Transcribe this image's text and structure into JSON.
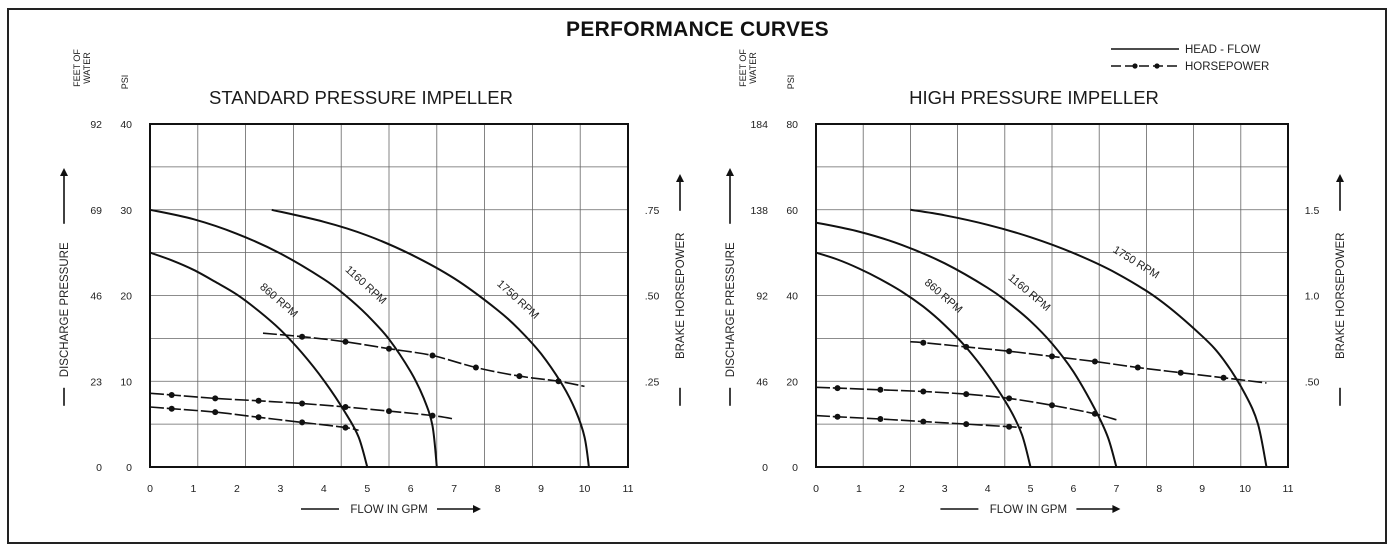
{
  "title": "PERFORMANCE CURVES",
  "legend": {
    "head_flow": "HEAD - FLOW",
    "horsepower": "HORSEPOWER"
  },
  "chart_data": [
    {
      "type": "line",
      "title": "STANDARD PRESSURE IMPELLER",
      "xlabel": "FLOW IN GPM",
      "ylabel_left": "DISCHARGE PRESSURE",
      "ylabel_right": "BRAKE HORSEPOWER",
      "left_axis_headers": [
        "FEET OF WATER",
        "PSI"
      ],
      "xlim": [
        0,
        11
      ],
      "ylim": [
        0,
        40
      ],
      "xticks": [
        "0",
        "1",
        "2",
        "3",
        "4",
        "5",
        "6",
        "7",
        "8",
        "9",
        "10",
        "11"
      ],
      "psi_ticks": [
        "0",
        "10",
        "20",
        "30",
        "40"
      ],
      "feet_ticks": [
        "0",
        "23",
        "46",
        "69",
        "92"
      ],
      "hp_ticks": [
        ".25",
        ".50",
        ".75"
      ],
      "hp_scale_psi_per_hp": 40,
      "grid": true,
      "head_flow_series": [
        {
          "name": "860 RPM",
          "x": [
            0,
            0.5,
            1,
            1.5,
            2,
            2.5,
            3,
            3.5,
            4,
            4.5,
            4.8,
            5
          ],
          "y": [
            25,
            24.1,
            23,
            21.6,
            20.1,
            18.2,
            16,
            13.3,
            10.1,
            6.3,
            3.5,
            0
          ]
        },
        {
          "name": "1160 RPM",
          "x": [
            0,
            1,
            2,
            3,
            4,
            4.5,
            5,
            5.5,
            6,
            6.3,
            6.5,
            6.6
          ],
          "y": [
            30,
            28.9,
            27.2,
            24.9,
            21.9,
            20,
            17.7,
            14.9,
            11.1,
            8,
            4.8,
            0
          ]
        },
        {
          "name": "1750 RPM",
          "x": [
            2.8,
            4,
            5,
            6,
            7,
            8,
            8.5,
            9,
            9.5,
            9.8,
            10,
            10.1
          ],
          "y": [
            30,
            28.6,
            27,
            24.8,
            22,
            18.3,
            16,
            13.2,
            9.5,
            6.5,
            3.5,
            0
          ]
        }
      ],
      "horsepower_series": [
        {
          "rpm": "860 RPM",
          "x": [
            0,
            0.5,
            1.5,
            2.5,
            3.5,
            4.5,
            4.8
          ],
          "hp": [
            0.175,
            0.17,
            0.16,
            0.145,
            0.13,
            0.115,
            0.107
          ]
        },
        {
          "rpm": "1160 RPM",
          "x": [
            0,
            0.5,
            1.5,
            2.5,
            3.5,
            4.5,
            5.5,
            6.5,
            7
          ],
          "hp": [
            0.215,
            0.21,
            0.2,
            0.193,
            0.185,
            0.175,
            0.163,
            0.15,
            0.14
          ]
        },
        {
          "rpm": "1750 RPM",
          "x": [
            2.6,
            3.5,
            4.5,
            5.5,
            6.5,
            7.5,
            8.5,
            9.4,
            10
          ],
          "hp": [
            0.39,
            0.38,
            0.365,
            0.345,
            0.325,
            0.29,
            0.265,
            0.25,
            0.235
          ]
        }
      ]
    },
    {
      "type": "line",
      "title": "HIGH PRESSURE IMPELLER",
      "xlabel": "FLOW IN GPM",
      "ylabel_left": "DISCHARGE PRESSURE",
      "ylabel_right": "BRAKE HORSEPOWER",
      "left_axis_headers": [
        "FEET OF WATER",
        "PSI"
      ],
      "xlim": [
        0,
        11
      ],
      "ylim": [
        0,
        80
      ],
      "xticks": [
        "0",
        "1",
        "2",
        "3",
        "4",
        "5",
        "6",
        "7",
        "8",
        "9",
        "10",
        "11"
      ],
      "psi_ticks": [
        "0",
        "20",
        "40",
        "60",
        "80"
      ],
      "feet_ticks": [
        "0",
        "46",
        "92",
        "138",
        "184"
      ],
      "hp_ticks": [
        ".50",
        "1.0",
        "1.5"
      ],
      "hp_scale_psi_per_hp": 40,
      "grid": true,
      "head_flow_series": [
        {
          "name": "860 RPM",
          "x": [
            0,
            0.5,
            1,
            1.5,
            2,
            2.5,
            3,
            3.5,
            4,
            4.5,
            4.8,
            5
          ],
          "y": [
            50,
            48.4,
            46.3,
            43.8,
            40.9,
            37.4,
            33.1,
            27.9,
            21.5,
            13.8,
            7.5,
            0
          ]
        },
        {
          "name": "1160 RPM",
          "x": [
            0,
            1,
            2,
            3,
            4,
            4.5,
            5,
            5.5,
            6,
            6.5,
            6.8,
            7
          ],
          "y": [
            57,
            54.9,
            51.8,
            47.5,
            41.8,
            38.2,
            34,
            28.8,
            22.2,
            13.5,
            7,
            0
          ]
        },
        {
          "name": "1750 RPM",
          "x": [
            2.2,
            3,
            4,
            5,
            6,
            7,
            8,
            9,
            9.5,
            10,
            10.3,
            10.5
          ],
          "y": [
            60,
            58.7,
            56.5,
            53.6,
            49.9,
            45.2,
            39,
            30.5,
            25,
            17,
            10,
            0
          ]
        }
      ],
      "horsepower_series": [
        {
          "rpm": "860 RPM",
          "x": [
            0,
            0.5,
            1.5,
            2.5,
            3.5,
            4.5,
            4.8
          ],
          "hp": [
            0.3,
            0.293,
            0.28,
            0.265,
            0.25,
            0.235,
            0.23
          ]
        },
        {
          "rpm": "1160 RPM",
          "x": [
            0,
            0.5,
            1.5,
            2.5,
            3.5,
            4.5,
            5.5,
            6.5,
            7
          ],
          "hp": [
            0.465,
            0.46,
            0.45,
            0.44,
            0.425,
            0.4,
            0.36,
            0.31,
            0.275
          ]
        },
        {
          "rpm": "1750 RPM",
          "x": [
            2.2,
            2.5,
            3.5,
            4.5,
            5.5,
            6.5,
            7.5,
            8.5,
            9.5,
            10.5
          ],
          "hp": [
            0.73,
            0.725,
            0.7,
            0.675,
            0.645,
            0.615,
            0.58,
            0.55,
            0.52,
            0.49
          ]
        }
      ]
    }
  ]
}
